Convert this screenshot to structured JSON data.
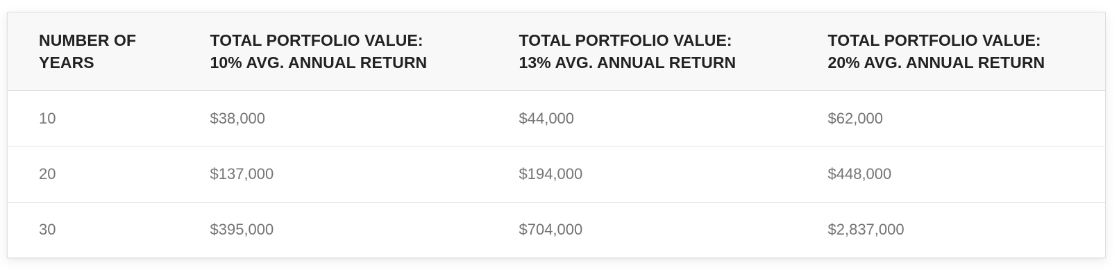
{
  "table": {
    "headers": [
      {
        "line1": "NUMBER OF",
        "line2": "YEARS"
      },
      {
        "line1": "TOTAL PORTFOLIO VALUE:",
        "line2": "10% AVG. ANNUAL RETURN"
      },
      {
        "line1": "TOTAL PORTFOLIO VALUE:",
        "line2": "13% AVG. ANNUAL RETURN"
      },
      {
        "line1": "TOTAL PORTFOLIO VALUE:",
        "line2": "20% AVG. ANNUAL RETURN"
      }
    ],
    "rows": [
      [
        "10",
        "$38,000",
        "$44,000",
        "$62,000"
      ],
      [
        "20",
        "$137,000",
        "$194,000",
        "$448,000"
      ],
      [
        "30",
        "$395,000",
        "$704,000",
        "$2,837,000"
      ]
    ]
  }
}
